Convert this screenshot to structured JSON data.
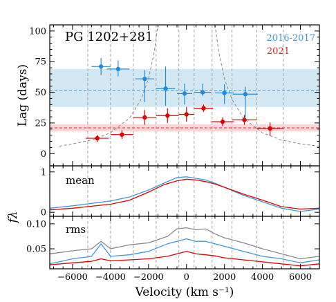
{
  "chart_data": [
    {
      "type": "scatter",
      "panel": "lag",
      "title": "PG 1202+281",
      "xlabel": "",
      "ylabel": "Lag (days)",
      "xlim": [
        -7200,
        7000
      ],
      "ylim": [
        -10,
        105
      ],
      "yticks": [
        0,
        25,
        50,
        75,
        100
      ],
      "bin_edges": [
        -5200,
        -4000,
        -2800,
        -1600,
        -400,
        400,
        1350,
        2400,
        3700,
        5100
      ],
      "legend": {
        "placement": "top-right",
        "entries": [
          {
            "label": "2016-2017",
            "color": "#3d97de"
          },
          {
            "label": "2021",
            "color": "#e8202a"
          }
        ]
      },
      "bands": [
        {
          "series": "2016-2017",
          "center": 51.5,
          "low": 38,
          "high": 69,
          "color": "#3d97de",
          "fill": "#d4e8f4"
        },
        {
          "series": "2021",
          "center": 21,
          "low": 18,
          "high": 24,
          "color": "#e8202a",
          "fill": "#f9d7d8"
        }
      ],
      "series": [
        {
          "name": "2016-2017",
          "color": "#1f8be0",
          "points": [
            {
              "x": -4500,
              "y": 71,
              "xerr": 500,
              "ylo": 7,
              "yhi": 7
            },
            {
              "x": -3600,
              "y": 69,
              "xerr": 600,
              "ylo": 6,
              "yhi": 7
            },
            {
              "x": -2200,
              "y": 61,
              "xerr": 500,
              "ylo": 19,
              "yhi": 7
            },
            {
              "x": -1100,
              "y": 53,
              "xerr": 500,
              "ylo": 14,
              "yhi": 18
            },
            {
              "x": -100,
              "y": 49,
              "xerr": 400,
              "ylo": 9,
              "yhi": 8
            },
            {
              "x": 850,
              "y": 50,
              "xerr": 450,
              "ylo": 3,
              "yhi": 7
            },
            {
              "x": 2000,
              "y": 49.5,
              "xerr": 500,
              "ylo": 9,
              "yhi": 7
            },
            {
              "x": 3100,
              "y": 48.5,
              "xerr": 650,
              "ylo": 19,
              "yhi": 6
            }
          ]
        },
        {
          "name": "2021",
          "color": "#e00000",
          "points": [
            {
              "x": -4700,
              "y": 12.5,
              "xerr": 600,
              "ylo": 3,
              "yhi": 3
            },
            {
              "x": -3400,
              "y": 15.5,
              "xerr": 600,
              "ylo": 3.5,
              "yhi": 3.5
            },
            {
              "x": -2200,
              "y": 29.5,
              "xerr": 600,
              "ylo": 6,
              "yhi": 6
            },
            {
              "x": -1000,
              "y": 31,
              "xerr": 600,
              "ylo": 6,
              "yhi": 6
            },
            {
              "x": 0,
              "y": 32,
              "xerr": 400,
              "ylo": 6,
              "yhi": 6
            },
            {
              "x": 900,
              "y": 37,
              "xerr": 500,
              "ylo": 3,
              "yhi": 3
            },
            {
              "x": 1900,
              "y": 26,
              "xerr": 600,
              "ylo": 3.5,
              "yhi": 3.5
            },
            {
              "x": 3050,
              "y": 27.5,
              "xerr": 650,
              "ylo": 4,
              "yhi": 4
            },
            {
              "x": 4400,
              "y": 20.5,
              "xerr": 700,
              "ylo": 6,
              "yhi": 5
            }
          ]
        }
      ],
      "virial_envelope": {
        "color": "#888888",
        "style": "dashed",
        "x": [
          -6700,
          -6000,
          -5000,
          -4000,
          -3000,
          -2400,
          -2000,
          -1700,
          -1500,
          1500,
          1700,
          2000,
          2400,
          3000,
          4000,
          5000,
          6000,
          7000
        ],
        "y": [
          6,
          8,
          11,
          17,
          29,
          44,
          61,
          83,
          105,
          105,
          83,
          61,
          44,
          29,
          17,
          11,
          8,
          6
        ]
      }
    },
    {
      "type": "line",
      "panel": "mean",
      "label": "mean",
      "xlabel": "",
      "ylabel": "",
      "xlim": [
        -7200,
        7000
      ],
      "ylim": [
        -0.1,
        1.15
      ],
      "yticks": [
        0,
        1
      ],
      "series": [
        {
          "color": "#3d97de",
          "x": [
            -7200,
            -6000,
            -5000,
            -4000,
            -3000,
            -2000,
            -1200,
            -500,
            0,
            500,
            1000,
            1500,
            2000,
            3000,
            4000,
            5000,
            6000,
            7000
          ],
          "y": [
            0.1,
            0.16,
            0.22,
            0.28,
            0.38,
            0.55,
            0.72,
            0.86,
            0.88,
            0.84,
            0.8,
            0.72,
            0.62,
            0.42,
            0.26,
            0.1,
            0.02,
            0.08
          ]
        },
        {
          "color": "#e00000",
          "x": [
            -7200,
            -6000,
            -5000,
            -4000,
            -3000,
            -2000,
            -1200,
            -500,
            0,
            500,
            1000,
            1500,
            2000,
            3000,
            4000,
            5000,
            6000,
            7000
          ],
          "y": [
            0.06,
            0.1,
            0.15,
            0.2,
            0.3,
            0.5,
            0.68,
            0.78,
            0.82,
            0.8,
            0.76,
            0.7,
            0.62,
            0.45,
            0.3,
            0.14,
            0.08,
            0.1
          ]
        }
      ]
    },
    {
      "type": "line",
      "panel": "rms",
      "label": "rms",
      "xlabel": "Velocity (km s⁻¹)",
      "ylabel": "",
      "shared_ylabel": "fλ",
      "xlim": [
        -7200,
        7000
      ],
      "ylim": [
        0.01,
        0.115
      ],
      "yticks": [
        0.05,
        0.1
      ],
      "ytick_labels": [
        "0.05",
        "0.10"
      ],
      "xticks": [
        -6000,
        -4000,
        -2000,
        0,
        2000,
        4000,
        6000
      ],
      "series": [
        {
          "color": "#888888",
          "x": [
            -7200,
            -6000,
            -5000,
            -4500,
            -4000,
            -3000,
            -2000,
            -1000,
            -500,
            0,
            500,
            1000,
            1500,
            2000,
            3000,
            4000,
            5000,
            6000,
            7000
          ],
          "y": [
            0.04,
            0.046,
            0.05,
            0.065,
            0.05,
            0.058,
            0.062,
            0.075,
            0.09,
            0.092,
            0.088,
            0.09,
            0.08,
            0.072,
            0.062,
            0.05,
            0.04,
            0.03,
            0.035
          ]
        },
        {
          "color": "#3d97de",
          "x": [
            -7200,
            -6000,
            -5000,
            -4500,
            -4000,
            -3000,
            -2000,
            -1000,
            -500,
            0,
            500,
            1000,
            1500,
            2000,
            3000,
            4000,
            5000,
            6000,
            7000
          ],
          "y": [
            0.02,
            0.03,
            0.035,
            0.06,
            0.035,
            0.038,
            0.045,
            0.06,
            0.065,
            0.07,
            0.065,
            0.065,
            0.06,
            0.055,
            0.045,
            0.035,
            0.03,
            0.022,
            0.028
          ]
        },
        {
          "color": "#e00000",
          "x": [
            -7200,
            -6000,
            -5000,
            -4500,
            -4000,
            -3000,
            -2000,
            -1000,
            -500,
            0,
            500,
            1000,
            1500,
            2000,
            3000,
            4000,
            5000,
            6000,
            7000
          ],
          "y": [
            0.018,
            0.022,
            0.025,
            0.03,
            0.026,
            0.028,
            0.03,
            0.035,
            0.04,
            0.045,
            0.04,
            0.038,
            0.036,
            0.032,
            0.028,
            0.024,
            0.02,
            0.016,
            0.02
          ]
        }
      ]
    }
  ]
}
